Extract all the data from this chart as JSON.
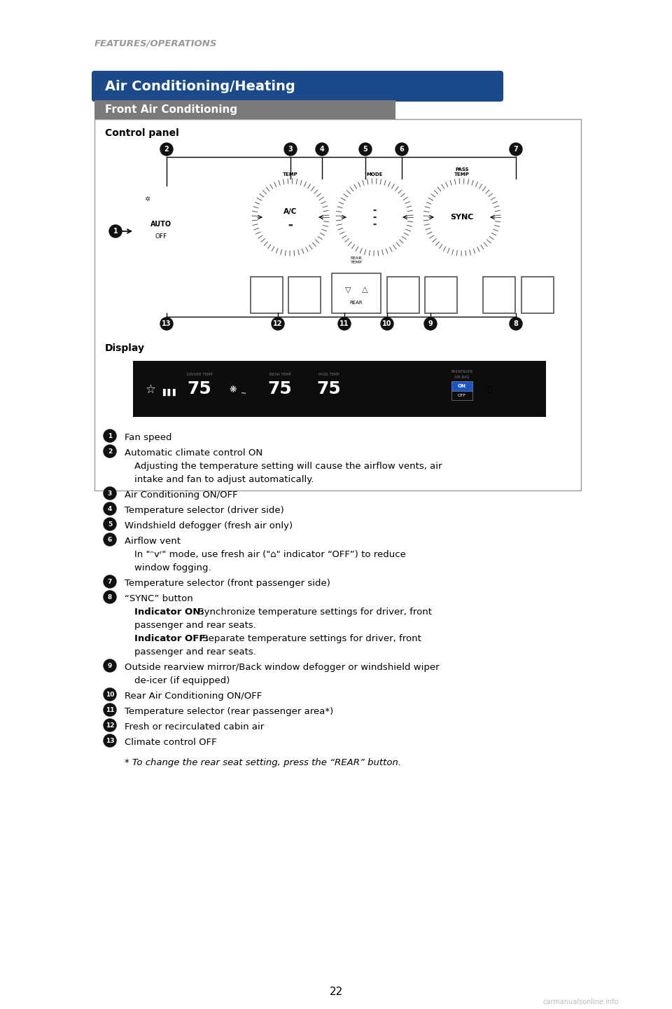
{
  "page_title": "FEATURES/OPERATIONS",
  "section_title": "Air Conditioning/Heating",
  "subsection_title": "Front Air Conditioning",
  "panel_label": "Control panel",
  "display_label": "Display",
  "section_bg_color": "#1a4a8a",
  "subsection_bg_color": "#7a7a7a",
  "background_color": "#ffffff",
  "page_number": "22",
  "footnote": "* To change the rear seat setting, press the “REAR” button."
}
